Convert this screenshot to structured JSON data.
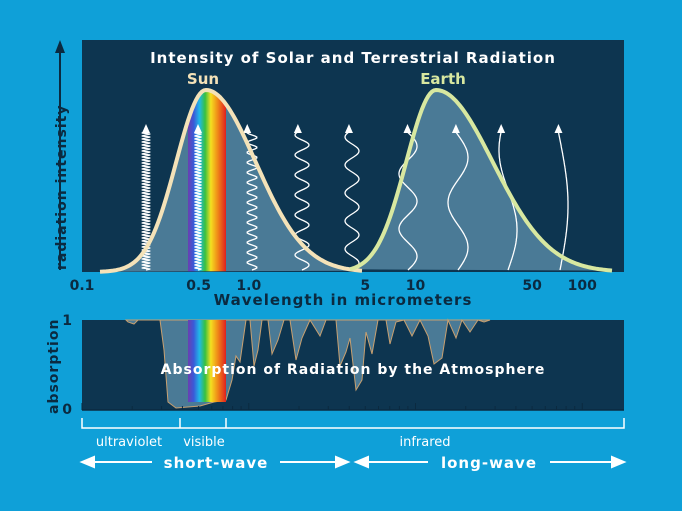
{
  "top_panel": {
    "title": "Intensity of Solar and Terrestrial Radiation",
    "sun_label": "Sun",
    "earth_label": "Earth",
    "y_axis_label": "radiation intensity",
    "x_axis_label": "Wavelength in micrometers",
    "x_ticks": [
      "0.1",
      "0.5",
      "1.0",
      "5",
      "10",
      "50",
      "100"
    ]
  },
  "bottom_panel": {
    "title": "Absorption of Radiation by the Atmosphere",
    "y_axis_label": "absorption",
    "y_ticks": [
      "1",
      "0"
    ]
  },
  "bands": {
    "ultraviolet": "ultraviolet",
    "visible": "visible",
    "infrared": "infrared",
    "short_wave": "short-wave",
    "long_wave": "long-wave"
  },
  "colors": {
    "background": "#0fa0d8",
    "panel": "#0d3550",
    "sun_curve": "#f4e2b8",
    "earth_curve": "#d8e8a0",
    "curve_fill": "#4a7a96"
  }
}
